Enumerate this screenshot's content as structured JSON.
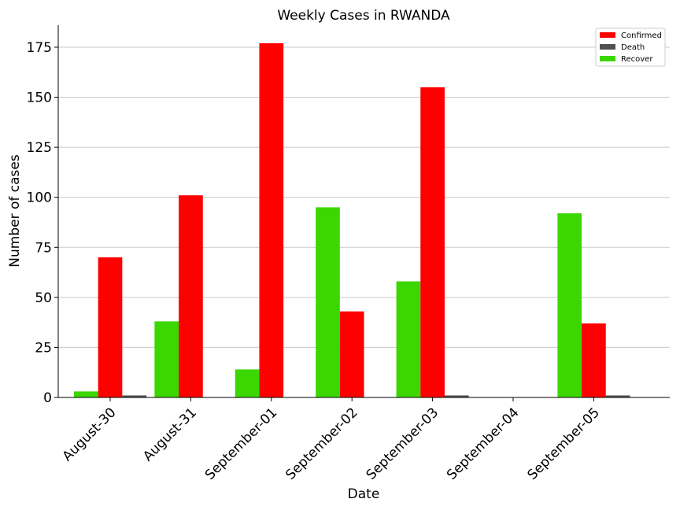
{
  "chart_data": {
    "type": "bar",
    "title": "Weekly Cases in RWANDA",
    "xlabel": "Date",
    "ylabel": "Number of cases",
    "categories": [
      "August-30",
      "August-31",
      "September-01",
      "September-02",
      "September-03",
      "September-04",
      "September-05"
    ],
    "series": [
      {
        "name": "Recover",
        "color": "#3cd700",
        "values": [
          3,
          38,
          14,
          95,
          58,
          0,
          92
        ]
      },
      {
        "name": "Confirmed",
        "color": "#ff0000",
        "values": [
          70,
          101,
          177,
          43,
          155,
          0,
          37
        ]
      },
      {
        "name": "Death",
        "color": "#505050",
        "values": [
          1,
          0,
          0,
          0,
          1,
          0,
          1
        ]
      }
    ],
    "legend_order": [
      "Confirmed",
      "Death",
      "Recover"
    ],
    "legend_position": "top-right",
    "ylim": [
      0,
      186
    ],
    "yticks": [
      0,
      25,
      50,
      75,
      100,
      125,
      150,
      175
    ],
    "grid": "horizontal"
  }
}
